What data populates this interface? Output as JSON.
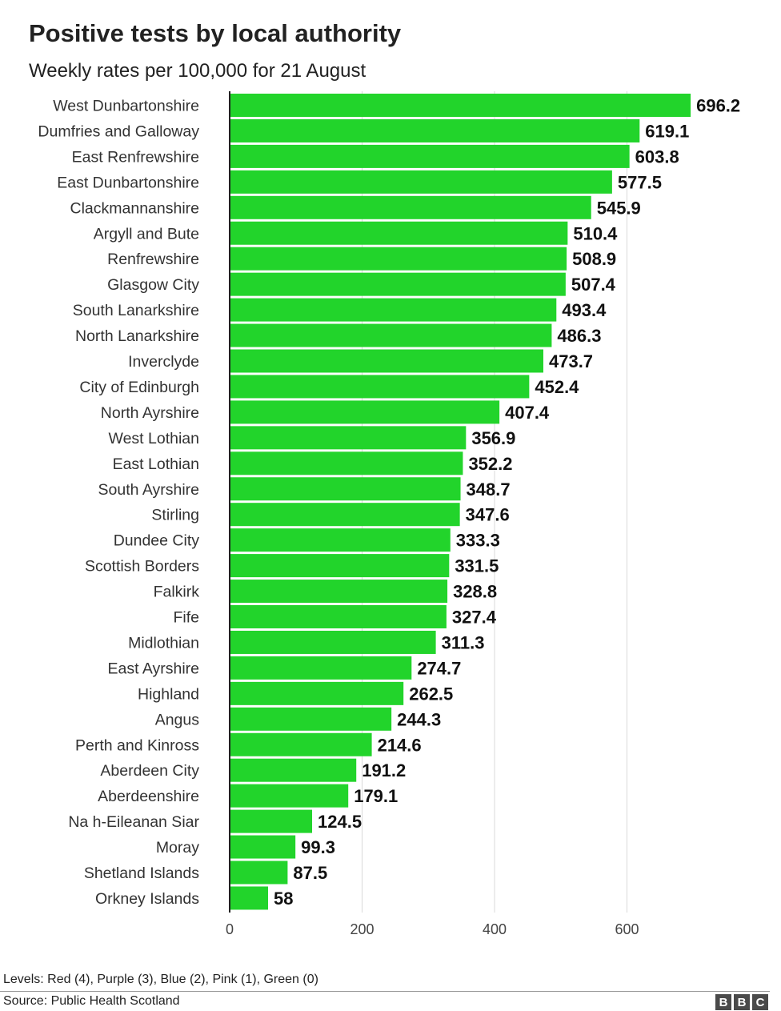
{
  "chart_data": {
    "type": "bar",
    "orientation": "horizontal",
    "title": "Positive tests by local authority",
    "subtitle": "Weekly rates per 100,000 for 21 August",
    "xlabel": "",
    "ylabel": "",
    "xlim": [
      0,
      700
    ],
    "xticks": [
      0,
      200,
      400,
      600
    ],
    "grid": true,
    "bar_color": "#22d42b",
    "categories": [
      "West Dunbartonshire",
      "Dumfries and Galloway",
      "East Renfrewshire",
      "East Dunbartonshire",
      "Clackmannanshire",
      "Argyll and Bute",
      "Renfrewshire",
      "Glasgow City",
      "South Lanarkshire",
      "North Lanarkshire",
      "Inverclyde",
      "City of Edinburgh",
      "North Ayrshire",
      "West Lothian",
      "East Lothian",
      "South Ayrshire",
      "Stirling",
      "Dundee City",
      "Scottish Borders",
      "Falkirk",
      "Fife",
      "Midlothian",
      "East Ayrshire",
      "Highland",
      "Angus",
      "Perth and Kinross",
      "Aberdeen City",
      "Aberdeenshire",
      "Na h-Eileanan Siar",
      "Moray",
      "Shetland Islands",
      "Orkney Islands"
    ],
    "values": [
      696.2,
      619.1,
      603.8,
      577.5,
      545.9,
      510.4,
      508.9,
      507.4,
      493.4,
      486.3,
      473.7,
      452.4,
      407.4,
      356.9,
      352.2,
      348.7,
      347.6,
      333.3,
      331.5,
      328.8,
      327.4,
      311.3,
      274.7,
      262.5,
      244.3,
      214.6,
      191.2,
      179.1,
      124.5,
      99.3,
      87.5,
      58
    ],
    "value_labels": [
      "696.2",
      "619.1",
      "603.8",
      "577.5",
      "545.9",
      "510.4",
      "508.9",
      "507.4",
      "493.4",
      "486.3",
      "473.7",
      "452.4",
      "407.4",
      "356.9",
      "352.2",
      "348.7",
      "347.6",
      "333.3",
      "331.5",
      "328.8",
      "327.4",
      "311.3",
      "274.7",
      "262.5",
      "244.3",
      "214.6",
      "191.2",
      "179.1",
      "124.5",
      "99.3",
      "87.5",
      "58"
    ]
  },
  "footer": {
    "levels_note": "Levels: Red (4), Purple (3), Blue (2), Pink (1), Green (0)",
    "source": "Source: Public Health Scotland",
    "logo_letters": [
      "B",
      "B",
      "C"
    ]
  }
}
